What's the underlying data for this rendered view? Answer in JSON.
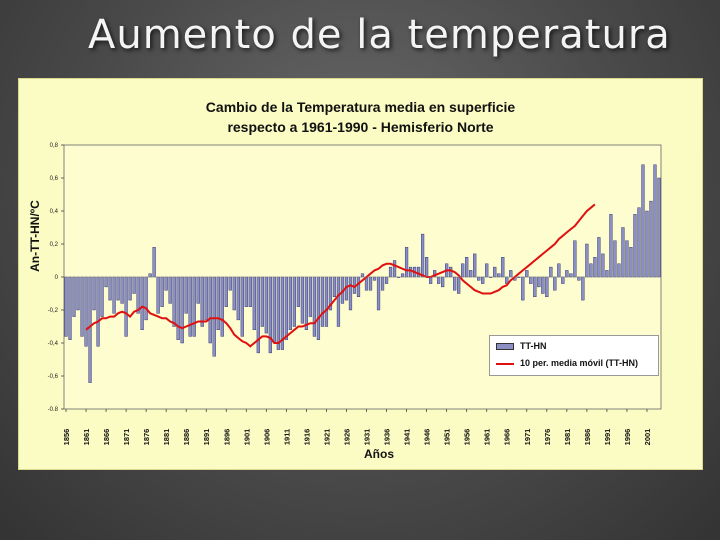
{
  "slide": {
    "title": "Aumento de la temperatura"
  },
  "colors": {
    "bars": "#8b8fc4",
    "bar_outline": "#1c2163",
    "moving_avg": "#e01010",
    "panel": "#fbfbc4"
  },
  "chart_data": {
    "type": "bar",
    "title_line1": "Cambio de la Temperatura media en superficie",
    "title_line2": "respecto a 1961-1990 - Hemisferio Norte",
    "xlabel": "Años",
    "ylabel": "An-TT-HN/ºC",
    "ylim": [
      -0.8,
      0.8
    ],
    "y_ticks": [
      {
        "value": -0.8,
        "label": "-0.8"
      },
      {
        "value": -0.6,
        "label": "-0,6"
      },
      {
        "value": -0.4,
        "label": "-0,4"
      },
      {
        "value": -0.2,
        "label": "-0,2"
      },
      {
        "value": 0,
        "label": "0"
      },
      {
        "value": 0.2,
        "label": "0,2"
      },
      {
        "value": 0.4,
        "label": "0,4"
      },
      {
        "value": 0.6,
        "label": "0,6"
      },
      {
        "value": 0.8,
        "label": "0,8"
      }
    ],
    "x_start_year": 1856,
    "x_ticks": [
      "1856",
      "1861",
      "1866",
      "1871",
      "1876",
      "1881",
      "1886",
      "1891",
      "1896",
      "1901",
      "1906",
      "1911",
      "1916",
      "1921",
      "1926",
      "1931",
      "1936",
      "1941",
      "1946",
      "1951",
      "1956",
      "1961",
      "1966",
      "1971",
      "1976",
      "1981",
      "1986",
      "1991",
      "1996",
      "2001"
    ],
    "series": [
      {
        "name": "TT-HN",
        "values": [
          -0.36,
          -0.38,
          -0.24,
          -0.2,
          -0.36,
          -0.42,
          -0.64,
          -0.2,
          -0.42,
          -0.24,
          -0.06,
          -0.14,
          -0.22,
          -0.14,
          -0.16,
          -0.36,
          -0.14,
          -0.1,
          -0.22,
          -0.32,
          -0.26,
          0.02,
          0.18,
          -0.22,
          -0.18,
          -0.08,
          -0.16,
          -0.3,
          -0.38,
          -0.4,
          -0.22,
          -0.36,
          -0.36,
          -0.16,
          -0.3,
          -0.26,
          -0.4,
          -0.48,
          -0.32,
          -0.36,
          -0.18,
          -0.08,
          -0.2,
          -0.26,
          -0.36,
          -0.18,
          -0.18,
          -0.32,
          -0.46,
          -0.3,
          -0.34,
          -0.46,
          -0.4,
          -0.44,
          -0.44,
          -0.38,
          -0.32,
          -0.3,
          -0.18,
          -0.28,
          -0.32,
          -0.24,
          -0.36,
          -0.38,
          -0.3,
          -0.3,
          -0.2,
          -0.12,
          -0.3,
          -0.16,
          -0.14,
          -0.2,
          -0.1,
          -0.12,
          0.02,
          -0.08,
          -0.08,
          -0.02,
          -0.2,
          -0.08,
          -0.04,
          0.06,
          0.1,
          0.0,
          0.02,
          0.18,
          0.06,
          0.06,
          0.06,
          0.26,
          0.12,
          -0.04,
          0.04,
          -0.04,
          -0.06,
          0.08,
          0.06,
          -0.08,
          -0.1,
          0.08,
          0.12,
          0.04,
          0.14,
          -0.02,
          -0.04,
          0.08,
          0.0,
          0.06,
          0.02,
          0.12,
          -0.04,
          0.04,
          -0.02,
          0.0,
          -0.14,
          0.04,
          -0.04,
          -0.12,
          -0.06,
          -0.1,
          -0.12,
          0.06,
          -0.08,
          0.08,
          -0.04,
          0.04,
          0.02,
          0.22,
          -0.02,
          -0.14,
          0.2,
          0.08,
          0.12,
          0.24,
          0.14,
          0.04,
          0.38,
          0.22,
          0.08,
          0.3,
          0.22,
          0.18,
          0.38,
          0.42,
          0.68,
          0.4,
          0.46,
          0.68,
          0.6
        ]
      },
      {
        "name": "10 per. media móvil (TT-HN)",
        "start_year": 1861,
        "values": [
          -0.32,
          -0.3,
          -0.28,
          -0.27,
          -0.25,
          -0.25,
          -0.24,
          -0.24,
          -0.22,
          -0.21,
          -0.22,
          -0.24,
          -0.21,
          -0.2,
          -0.18,
          -0.19,
          -0.22,
          -0.23,
          -0.24,
          -0.25,
          -0.25,
          -0.27,
          -0.28,
          -0.3,
          -0.31,
          -0.3,
          -0.29,
          -0.28,
          -0.27,
          -0.27,
          -0.27,
          -0.25,
          -0.25,
          -0.25,
          -0.26,
          -0.28,
          -0.31,
          -0.35,
          -0.37,
          -0.39,
          -0.4,
          -0.42,
          -0.4,
          -0.38,
          -0.36,
          -0.36,
          -0.37,
          -0.4,
          -0.4,
          -0.38,
          -0.36,
          -0.34,
          -0.32,
          -0.3,
          -0.3,
          -0.29,
          -0.28,
          -0.28,
          -0.25,
          -0.22,
          -0.2,
          -0.17,
          -0.14,
          -0.11,
          -0.09,
          -0.06,
          -0.05,
          -0.06,
          -0.04,
          -0.02,
          0.0,
          0.02,
          0.04,
          0.05,
          0.07,
          0.08,
          0.08,
          0.07,
          0.06,
          0.05,
          0.04,
          0.04,
          0.03,
          0.02,
          0.01,
          0.0,
          0.0,
          0.01,
          0.02,
          0.03,
          0.04,
          0.04,
          0.03,
          0.01,
          -0.02,
          -0.04,
          -0.06,
          -0.08,
          -0.09,
          -0.1,
          -0.1,
          -0.1,
          -0.09,
          -0.08,
          -0.06,
          -0.05,
          -0.02,
          0.0,
          0.02,
          0.04,
          0.06,
          0.08,
          0.1,
          0.12,
          0.14,
          0.16,
          0.18,
          0.2,
          0.23,
          0.25,
          0.27,
          0.29,
          0.31,
          0.34,
          0.37,
          0.4,
          0.42,
          0.44
        ]
      }
    ],
    "legend": [
      "TT-HN",
      "10 per. media móvil (TT-HN)"
    ],
    "legend_position": "bottom-right"
  }
}
